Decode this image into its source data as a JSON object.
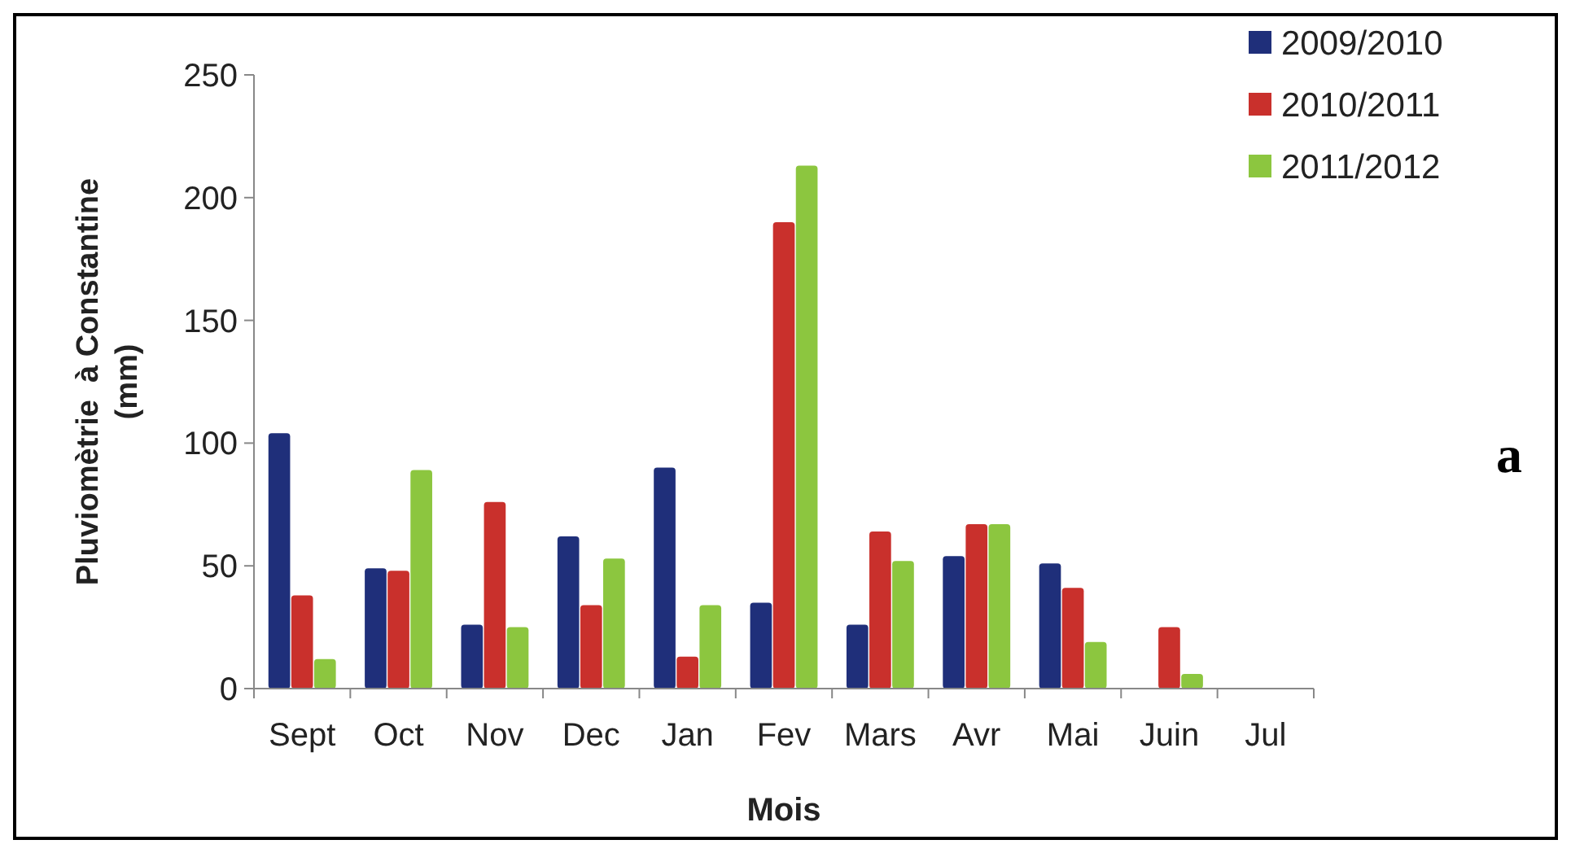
{
  "chart_data": {
    "type": "bar",
    "xlabel": "Mois",
    "ylabel": "Pluviomètrie  à Constantine (mm)",
    "annotations": [
      "a"
    ],
    "categories": [
      "Sept",
      "Oct",
      "Nov",
      "Dec",
      "Jan",
      "Fev",
      "Mars",
      "Avr",
      "Mai",
      "Juin",
      "Jul"
    ],
    "series": [
      {
        "name": "2009/2010",
        "color": "#1f2f7a",
        "values": [
          104,
          49,
          26,
          62,
          90,
          35,
          26,
          54,
          51,
          0,
          0
        ]
      },
      {
        "name": "2010/2011",
        "color": "#c9302c",
        "values": [
          38,
          48,
          76,
          34,
          13,
          190,
          64,
          67,
          41,
          25,
          0
        ]
      },
      {
        "name": "2011/2012",
        "color": "#8cc63f",
        "values": [
          12,
          89,
          25,
          53,
          34,
          213,
          52,
          67,
          19,
          6,
          0
        ]
      }
    ],
    "ylim": [
      0,
      250
    ],
    "yticks": [
      0,
      50,
      100,
      150,
      200,
      250
    ],
    "grid": false,
    "legend": "top right"
  }
}
